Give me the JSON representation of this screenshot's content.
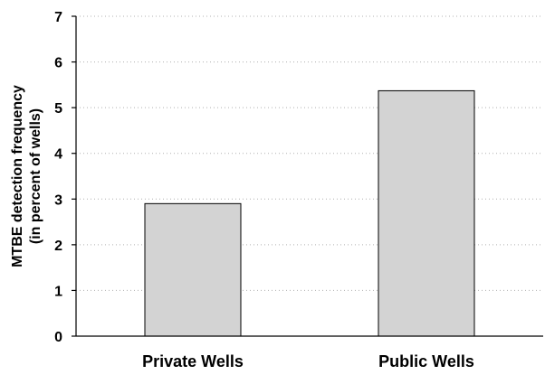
{
  "chart_data": {
    "type": "bar",
    "categories": [
      "Private Wells",
      "Public Wells"
    ],
    "values": [
      2.9,
      5.37
    ],
    "ylabel_line1": "MTBE detection frequency",
    "ylabel_line2": "(in percent of wells)",
    "ylim": [
      0,
      7
    ],
    "yticks": [
      "0",
      "1",
      "2",
      "3",
      "4",
      "5",
      "6",
      "7"
    ],
    "grid": true,
    "bar_color": "#d3d3d3",
    "legend": "none"
  }
}
